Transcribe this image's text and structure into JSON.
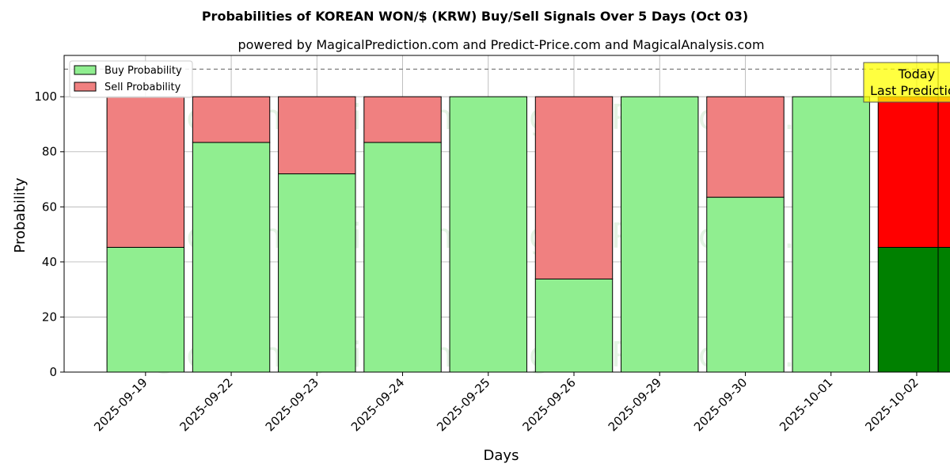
{
  "chart_data": {
    "type": "bar",
    "stacked": true,
    "title": "Probabilities of KOREAN WON/$ (KRW) Buy/Sell Signals Over 5 Days (Oct 03)",
    "subtitle": "powered by MagicalPrediction.com and Predict-Price.com and MagicalAnalysis.com",
    "xlabel": "Days",
    "ylabel": "Probability",
    "ylim": [
      0,
      115
    ],
    "yticks": [
      0,
      20,
      40,
      60,
      80,
      100
    ],
    "reference_line": 110,
    "grid": true,
    "legend_position": "top-left",
    "categories": [
      "2025-09-19",
      "2025-09-22",
      "2025-09-23",
      "2025-09-24",
      "2025-09-25",
      "2025-09-26",
      "2025-09-29",
      "2025-09-30",
      "2025-10-01",
      "2025-10-02"
    ],
    "series": [
      {
        "name": "Buy Probability",
        "color": "#90ee90",
        "values": [
          45.3,
          83.4,
          72.0,
          83.4,
          100,
          33.8,
          100,
          63.5,
          100,
          45.3
        ]
      },
      {
        "name": "Sell Probability",
        "color": "#f08080",
        "values": [
          54.7,
          16.6,
          28.0,
          16.6,
          0,
          66.2,
          0,
          36.5,
          0,
          54.7
        ]
      }
    ],
    "highlight": {
      "index": 9,
      "buy_color": "#008000",
      "sell_color": "#ff0000"
    },
    "annotation": {
      "lines": [
        "Today",
        "Last Prediction"
      ],
      "background": "#ffff00"
    },
    "watermarks": [
      "MagicalAnalysis.com",
      "MagicalPrediction.com"
    ]
  }
}
